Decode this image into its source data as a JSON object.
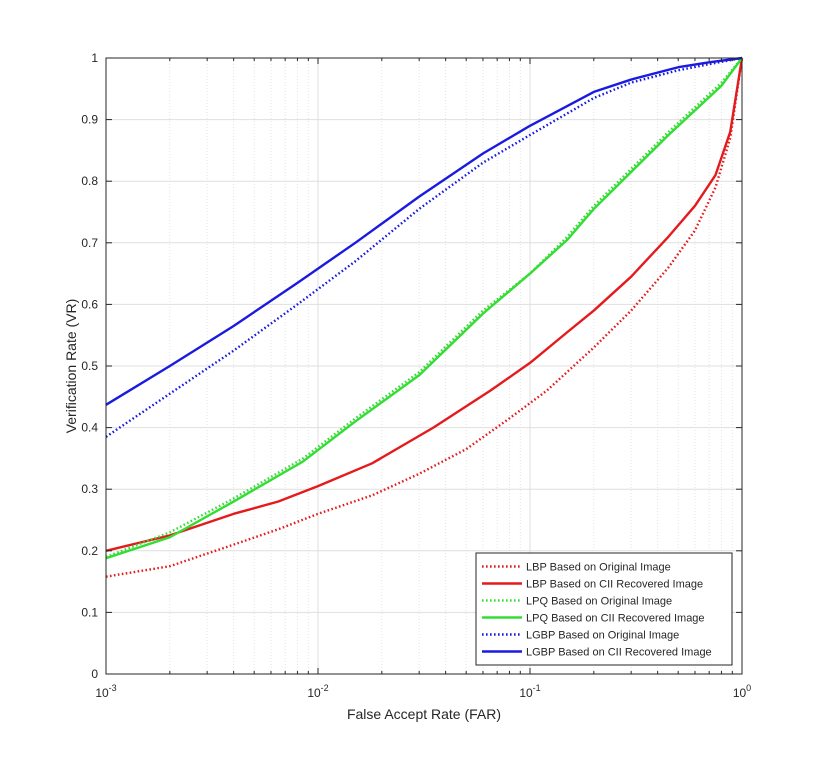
{
  "chart_data": {
    "type": "line",
    "title": "",
    "xlabel": "False Accept Rate (FAR)",
    "ylabel": "Verification Rate (VR)",
    "xscale": "log",
    "xlim": [
      0.001,
      1
    ],
    "ylim": [
      0,
      1
    ],
    "grid": true,
    "legend_position": "bottom-right",
    "x_ticks": [
      {
        "value": 0.001,
        "base": "10",
        "exp": "-3"
      },
      {
        "value": 0.01,
        "base": "10",
        "exp": "-2"
      },
      {
        "value": 0.1,
        "base": "10",
        "exp": "-1"
      },
      {
        "value": 1,
        "base": "10",
        "exp": "0"
      }
    ],
    "y_ticks": [
      {
        "value": 0,
        "label": "0"
      },
      {
        "value": 0.1,
        "label": "0.1"
      },
      {
        "value": 0.2,
        "label": "0.2"
      },
      {
        "value": 0.3,
        "label": "0.3"
      },
      {
        "value": 0.4,
        "label": "0.4"
      },
      {
        "value": 0.5,
        "label": "0.5"
      },
      {
        "value": 0.6,
        "label": "0.6"
      },
      {
        "value": 0.7,
        "label": "0.7"
      },
      {
        "value": 0.8,
        "label": "0.8"
      },
      {
        "value": 0.9,
        "label": "0.9"
      },
      {
        "value": 1,
        "label": "1"
      }
    ],
    "series": [
      {
        "name": "LBP Based on Original Image",
        "color": "#e41a1c",
        "style": "dotted",
        "x": [
          0.001,
          0.002,
          0.004,
          0.0065,
          0.01,
          0.018,
          0.03,
          0.05,
          0.08,
          0.12,
          0.2,
          0.3,
          0.45,
          0.6,
          0.75,
          0.88,
          1.0
        ],
        "y": [
          0.158,
          0.175,
          0.21,
          0.235,
          0.26,
          0.29,
          0.325,
          0.365,
          0.415,
          0.46,
          0.53,
          0.59,
          0.66,
          0.72,
          0.79,
          0.87,
          1.0
        ]
      },
      {
        "name": "LBP Based on CII Recovered Image",
        "color": "#e41a1c",
        "style": "solid",
        "x": [
          0.001,
          0.002,
          0.004,
          0.0065,
          0.01,
          0.018,
          0.035,
          0.065,
          0.1,
          0.15,
          0.2,
          0.3,
          0.45,
          0.6,
          0.75,
          0.88,
          1.0
        ],
        "y": [
          0.2,
          0.225,
          0.26,
          0.28,
          0.305,
          0.342,
          0.4,
          0.46,
          0.505,
          0.555,
          0.59,
          0.645,
          0.71,
          0.76,
          0.81,
          0.88,
          1.0
        ]
      },
      {
        "name": "LPQ Based on Original Image",
        "color": "#33dd33",
        "style": "dotted",
        "x": [
          0.001,
          0.002,
          0.004,
          0.0085,
          0.015,
          0.03,
          0.06,
          0.1,
          0.15,
          0.2,
          0.3,
          0.45,
          0.6,
          0.8,
          1.0
        ],
        "y": [
          0.19,
          0.23,
          0.285,
          0.35,
          0.415,
          0.49,
          0.59,
          0.65,
          0.71,
          0.76,
          0.82,
          0.88,
          0.92,
          0.96,
          1.0
        ]
      },
      {
        "name": "LPQ Based on CII Recovered Image",
        "color": "#33dd33",
        "style": "solid",
        "x": [
          0.001,
          0.002,
          0.004,
          0.0085,
          0.015,
          0.03,
          0.06,
          0.1,
          0.15,
          0.2,
          0.3,
          0.45,
          0.6,
          0.8,
          1.0
        ],
        "y": [
          0.188,
          0.222,
          0.28,
          0.345,
          0.41,
          0.485,
          0.585,
          0.65,
          0.705,
          0.755,
          0.815,
          0.875,
          0.915,
          0.955,
          1.0
        ]
      },
      {
        "name": "LGBP Based on Original Image",
        "color": "#1a1ae0",
        "style": "dotted",
        "x": [
          0.001,
          0.002,
          0.004,
          0.008,
          0.015,
          0.03,
          0.06,
          0.1,
          0.2,
          0.3,
          0.5,
          0.7,
          1.0
        ],
        "y": [
          0.385,
          0.455,
          0.525,
          0.6,
          0.67,
          0.755,
          0.83,
          0.875,
          0.935,
          0.96,
          0.98,
          0.99,
          1.0
        ]
      },
      {
        "name": "LGBP Based on CII Recovered Image",
        "color": "#1a1ae0",
        "style": "solid",
        "x": [
          0.001,
          0.002,
          0.004,
          0.008,
          0.015,
          0.03,
          0.06,
          0.1,
          0.2,
          0.3,
          0.5,
          0.7,
          1.0
        ],
        "y": [
          0.437,
          0.5,
          0.565,
          0.635,
          0.7,
          0.775,
          0.845,
          0.89,
          0.945,
          0.965,
          0.985,
          0.993,
          1.0
        ]
      }
    ]
  }
}
